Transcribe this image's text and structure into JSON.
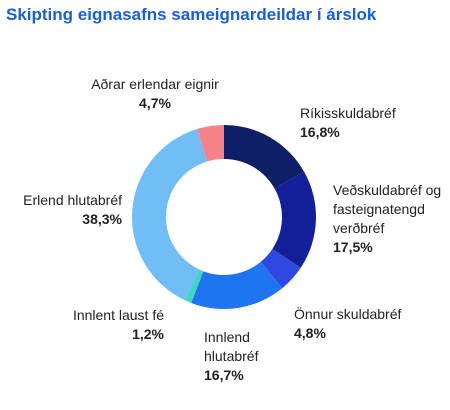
{
  "chart_data": {
    "type": "pie",
    "title": "Skipting eignasafns sameignardeildar í árslok",
    "slices": [
      {
        "label": "Ríkisskuldabréf",
        "value": 16.8,
        "value_label": "16,8%",
        "color": "#0f1f66"
      },
      {
        "label": "Veðskuldabréf og fasteignatengd verðbréf",
        "value": 17.5,
        "value_label": "17,5%",
        "color": "#14209a"
      },
      {
        "label": "Önnur skuldabréf",
        "value": 4.8,
        "value_label": "4,8%",
        "color": "#2f49e0"
      },
      {
        "label": "Innlend hlutabréf",
        "value": 16.7,
        "value_label": "16,7%",
        "color": "#1f74f0"
      },
      {
        "label": "Innlent laust fé",
        "value": 1.2,
        "value_label": "1,2%",
        "color": "#3fd6c6"
      },
      {
        "label": "Erlend hlutabréf",
        "value": 38.3,
        "value_label": "38,3%",
        "color": "#72bdf6"
      },
      {
        "label": "Aðrar erlendar eignir",
        "value": 4.7,
        "value_label": "4,7%",
        "color": "#f4848a"
      }
    ],
    "label_lines": {
      "Veðskuldabréf og fasteignatengd verðbréf": [
        "Veðskuldabréf og",
        "fasteignatengd",
        "verðbréf"
      ],
      "Innlend hlutabréf": [
        "Innlend",
        "hlutabréf"
      ]
    }
  }
}
